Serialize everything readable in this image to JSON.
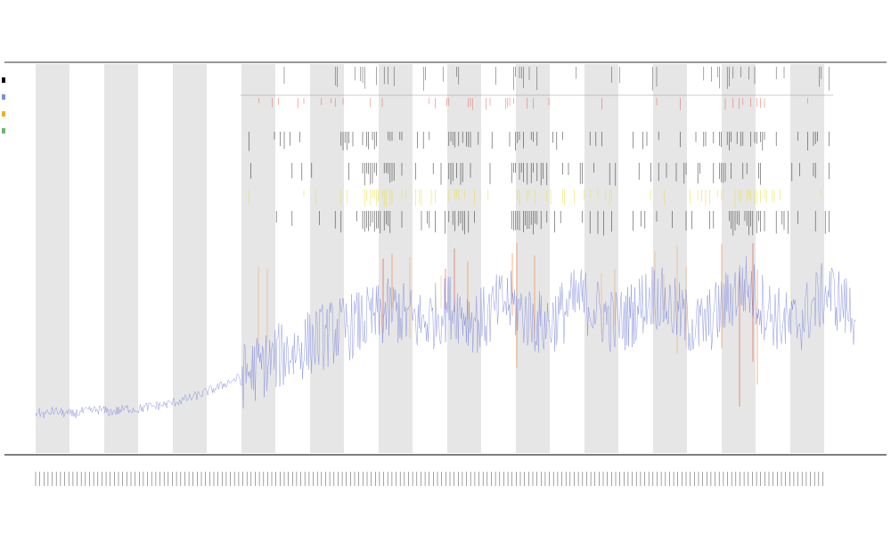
{
  "chart": {
    "titles": [
      "",
      "",
      ""
    ],
    "legend": [
      {
        "label": "",
        "color": "#000000"
      },
      {
        "label": "",
        "color": "#7b8fd8"
      },
      {
        "label": "",
        "color": "#f0b020"
      },
      {
        "label": "",
        "color": "#6fb36f"
      }
    ],
    "track_labels": [
      "",
      ""
    ],
    "colors": {
      "signal": "#7b86dc",
      "band": "#e6e6e6",
      "orange": "#f07a20",
      "red": "#e23a2a",
      "yellow": "#e8e040",
      "black": "#111111",
      "axis": "#333333"
    }
  },
  "chart_data": {
    "type": "line",
    "title": "",
    "xlabel": "",
    "ylabel": "",
    "grid": false,
    "legend_position": "top-left",
    "series": [
      {
        "values": [
          2,
          1.8,
          2.1,
          1.9,
          1.8,
          2.0,
          2.1,
          2.2,
          2.0,
          2.1,
          2.3,
          2.2,
          2.4,
          2.5,
          2.6,
          2.8,
          3.0,
          3.2,
          3.5,
          3.8,
          4.1,
          4.5,
          4.8,
          5.2,
          5.6,
          6.0,
          6.4,
          6.8,
          7.0,
          7.4,
          7.8,
          8.2,
          8.5,
          8.8,
          9.0,
          9.3,
          9.6,
          9.8,
          10.2,
          10.4,
          10.0,
          9.6,
          9.4,
          9.8,
          10.3,
          10.8,
          10.4,
          9.9,
          9.5,
          9.8,
          10.6,
          11.2,
          10.7,
          10.1,
          9.6,
          9.2,
          9.5,
          10.1,
          10.8,
          11.4,
          11.0,
          10.4,
          9.8,
          9.4,
          9.7,
          10.3,
          11.1,
          11.8,
          11.2,
          10.6,
          10.0,
          9.4,
          9.0,
          9.5,
          10.2,
          11.0,
          11.9,
          12.5,
          11.7,
          10.8,
          10.1,
          9.5,
          9.1,
          9.6,
          10.4,
          11.3,
          12.0,
          11.4,
          10.6,
          10.0
        ]
      }
    ]
  }
}
